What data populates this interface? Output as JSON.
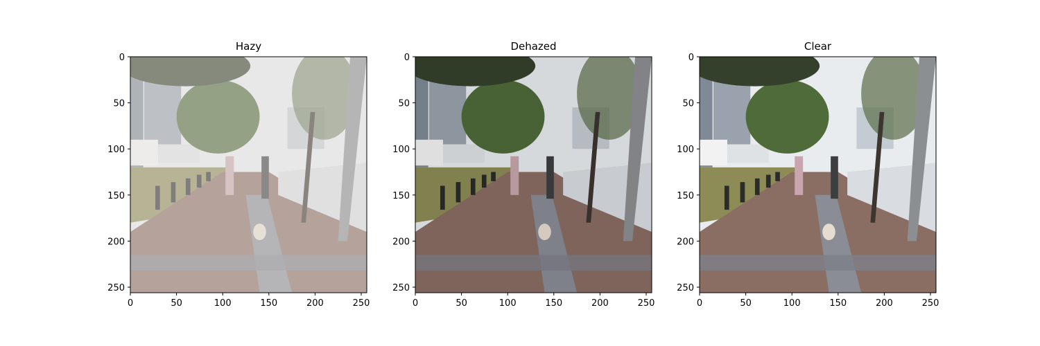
{
  "panels": [
    {
      "title": "Hazy",
      "x_ticks": [
        "0",
        "50",
        "100",
        "150",
        "200",
        "250"
      ],
      "y_ticks": [
        "0",
        "50",
        "100",
        "150",
        "200",
        "250"
      ],
      "scene": "haze"
    },
    {
      "title": "Dehazed",
      "x_ticks": [
        "0",
        "50",
        "100",
        "150",
        "200",
        "250"
      ],
      "y_ticks": [
        "0",
        "50",
        "100",
        "150",
        "200",
        "250"
      ],
      "scene": "dehazed"
    },
    {
      "title": "Clear",
      "x_ticks": [
        "0",
        "50",
        "100",
        "150",
        "200",
        "250"
      ],
      "y_ticks": [
        "0",
        "50",
        "100",
        "150",
        "200",
        "250"
      ],
      "scene": "clear"
    }
  ],
  "image_extent": [
    0,
    256
  ],
  "colors": {
    "sky": "#e9ecef",
    "pavement": "#8a6d63",
    "tree": "#4f6b3a",
    "building": "#9aa3ad",
    "fence": "#d9dde1",
    "haze_overlay": "#e8e5e1"
  }
}
